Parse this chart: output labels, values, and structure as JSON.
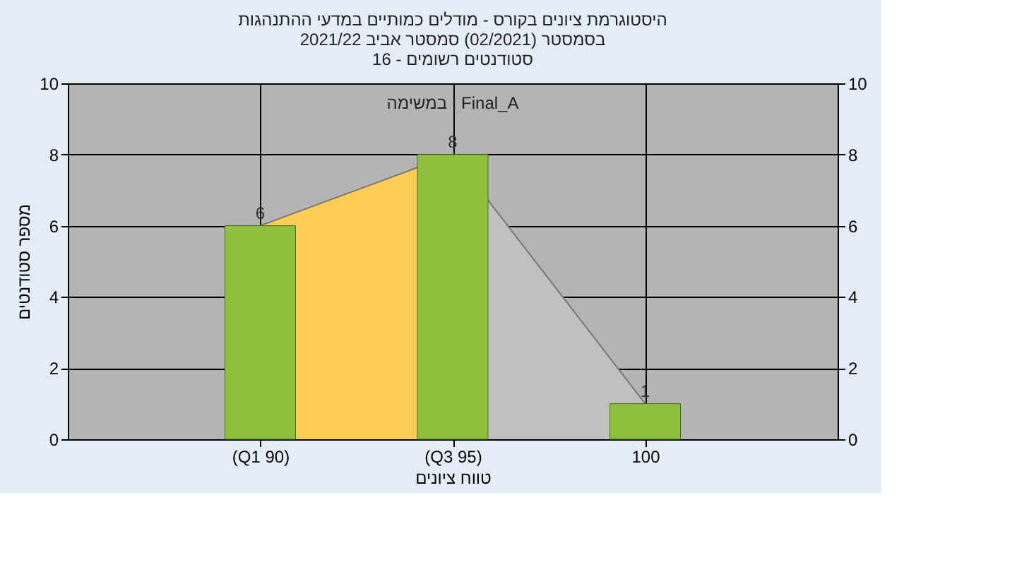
{
  "chart_data": {
    "type": "bar",
    "title": [
      "היסטוגרמת ציונים בקורס - מודלים כמותיים במדעי ההתנהגות",
      "בסמסטר (02/2021) סמסטר אביב 2021/22",
      "סטודנטים רשומים - 16"
    ],
    "xlabel": "טווח ציונים",
    "ylabel": "מספר סטודנטים",
    "annotations": [
      "במשימה : Final_A"
    ],
    "categories": [
      "(Q1 90)",
      "(Q3 95)",
      "100"
    ],
    "series": [
      {
        "type": "area",
        "color": "#ffcc55",
        "values": [
          6,
          8,
          null
        ],
        "value_labels": [
          null,
          null,
          null
        ]
      },
      {
        "type": "area",
        "color": "#c0c0c0",
        "values": [
          null,
          8,
          1
        ],
        "value_labels": [
          null,
          null,
          null
        ]
      },
      {
        "color": "#8fbf3f",
        "values": [
          6,
          8,
          1
        ]
      }
    ],
    "data_labels": true,
    "ylim": [
      0,
      10
    ],
    "yticks": [
      0,
      2,
      4,
      6,
      8,
      10
    ],
    "y2lim": [
      0,
      10
    ],
    "y2ticks": [
      0,
      2,
      4,
      6,
      8,
      10
    ],
    "grid": true
  }
}
